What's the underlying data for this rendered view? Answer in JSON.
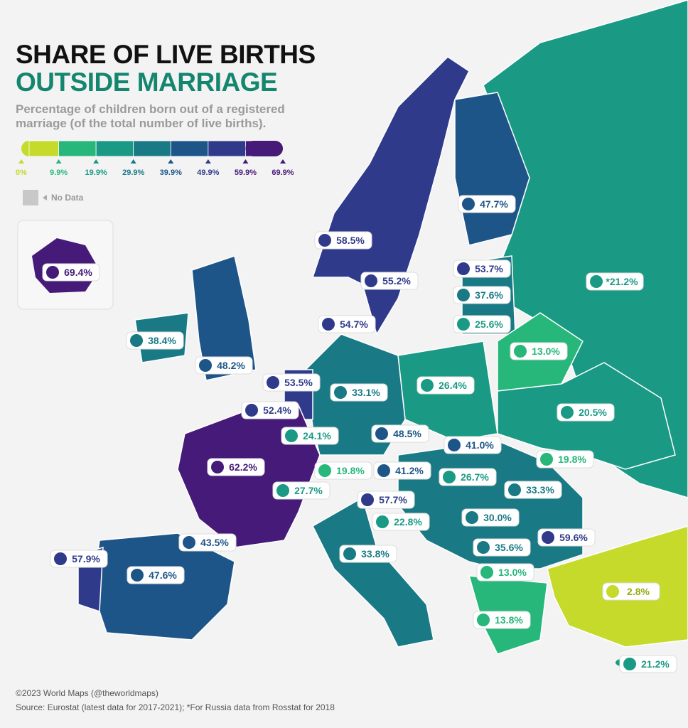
{
  "title_line1": "SHARE OF LIVE BIRTHS",
  "title_line2": "OUTSIDE MARRIAGE",
  "subtitle": "Percentage of children born out of a registered marriage (of the total number of live births).",
  "legend": {
    "ticks": [
      "0%",
      "9.9%",
      "19.9%",
      "29.9%",
      "39.9%",
      "49.9%",
      "59.9%",
      "69.9%"
    ],
    "colors": [
      "#c5da2a",
      "#27b77a",
      "#1a9a84",
      "#197a86",
      "#1e5589",
      "#2f3a8a",
      "#461a78"
    ]
  },
  "no_data": "No Data",
  "labels": [
    "69.4%",
    "47.7%",
    "58.5%",
    "53.7%",
    "*21.2%",
    "55.2%",
    "37.6%",
    "54.7%",
    "25.6%",
    "38.4%",
    "13.0%",
    "48.2%",
    "53.5%",
    "33.1%",
    "26.4%",
    "20.5%",
    "52.4%",
    "24.1%",
    "48.5%",
    "41.0%",
    "62.2%",
    "19.8%",
    "41.2%",
    "19.8%",
    "26.7%",
    "27.7%",
    "33.3%",
    "57.7%",
    "22.8%",
    "30.0%",
    "43.5%",
    "35.6%",
    "59.6%",
    "57.9%",
    "33.8%",
    "47.6%",
    "13.0%",
    "2.8%",
    "13.8%",
    "21.2%"
  ],
  "footer": {
    "credit": "©2023 World Maps (@theworldmaps)",
    "source": "Source: Eurostat (latest data for 2017-2021); *For Russia data from Rosstat for 2018"
  }
}
